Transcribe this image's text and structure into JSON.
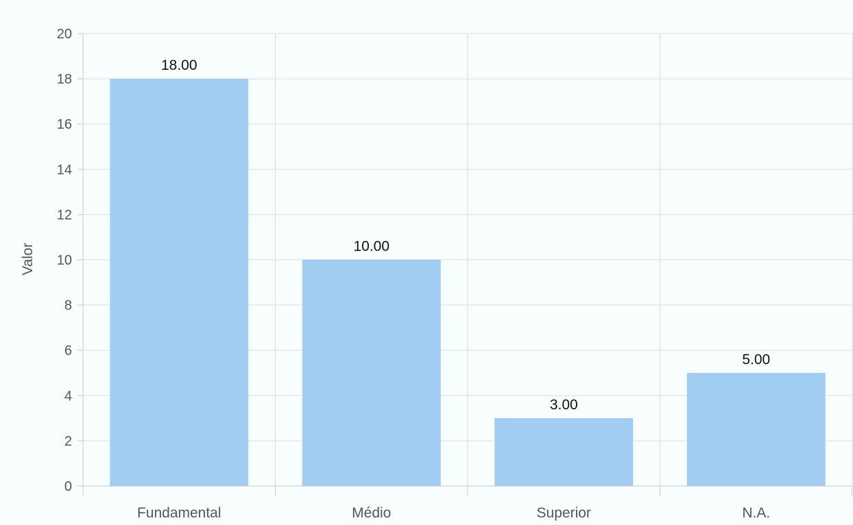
{
  "chart_data": {
    "type": "bar",
    "categories": [
      "Fundamental",
      "Médio",
      "Superior",
      "N.A."
    ],
    "values": [
      18,
      10,
      3,
      5
    ],
    "data_labels": [
      "18.00",
      "10.00",
      "3.00",
      "5.00"
    ],
    "title": "",
    "xlabel": "",
    "ylabel": "Valor",
    "ylim": [
      0,
      20
    ],
    "yticks": [
      "0",
      "2",
      "4",
      "6",
      "8",
      "10",
      "12",
      "14",
      "16",
      "18",
      "20"
    ],
    "grid": true,
    "legend": "none",
    "bar_color": "#a2cdf2",
    "background_color": "#f8fdfe"
  }
}
